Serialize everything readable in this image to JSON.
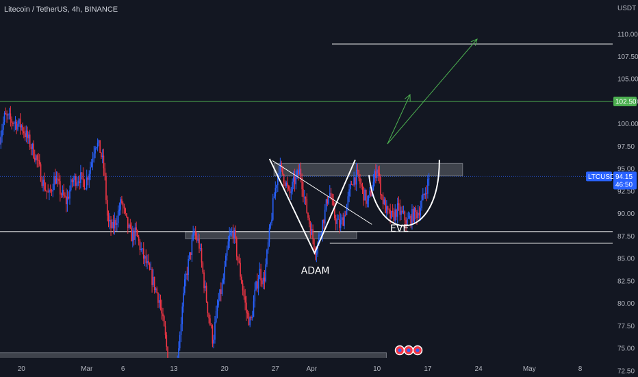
{
  "header": {
    "title": "Litecoin / TetherUS, 4h, BINANCE"
  },
  "colors": {
    "background": "#131722",
    "up": "#2962ff",
    "down": "#f23645",
    "text": "#b2b5be",
    "green": "#4caf50",
    "white": "#ffffff",
    "zone": "#5d6069"
  },
  "chart_data": {
    "type": "candlestick",
    "symbol": "LTCUSDT",
    "currency_label": "USDT",
    "ylim": [
      71.8,
      113.8
    ],
    "y_ticks": [
      "110.00",
      "107.50",
      "105.00",
      "102.50",
      "100.00",
      "97.50",
      "95.00",
      "92.50",
      "90.00",
      "87.50",
      "85.00",
      "82.50",
      "80.00",
      "77.50",
      "75.00",
      "72.50"
    ],
    "x_ticks": [
      {
        "label": "20",
        "day": 0
      },
      {
        "label": "Mar",
        "day": 9
      },
      {
        "label": "6",
        "day": 14
      },
      {
        "label": "13",
        "day": 21
      },
      {
        "label": "20",
        "day": 28
      },
      {
        "label": "27",
        "day": 35
      },
      {
        "label": "Apr",
        "day": 40
      },
      {
        "label": "10",
        "day": 49
      },
      {
        "label": "17",
        "day": 56
      },
      {
        "label": "24",
        "day": 63
      },
      {
        "label": "May",
        "day": 70
      },
      {
        "label": "8",
        "day": 77
      }
    ],
    "price_path": [
      [
        -3,
        98.5
      ],
      [
        -2.3,
        100.8
      ],
      [
        -1.5,
        100.4
      ],
      [
        0,
        99.8
      ],
      [
        1,
        98.1
      ],
      [
        2,
        96.3
      ],
      [
        3,
        93.4
      ],
      [
        3.8,
        91.9
      ],
      [
        4.6,
        94.1
      ],
      [
        5.4,
        92.4
      ],
      [
        6.2,
        91.3
      ],
      [
        7,
        93.6
      ],
      [
        8,
        94.1
      ],
      [
        8.8,
        93.3
      ],
      [
        9.6,
        95.6
      ],
      [
        10.2,
        98.1
      ],
      [
        10.8,
        97.2
      ],
      [
        11.4,
        94.9
      ],
      [
        11.9,
        89.0
      ],
      [
        12.5,
        88.3
      ],
      [
        13.1,
        89.4
      ],
      [
        13.8,
        91.4
      ],
      [
        14.4,
        89.2
      ],
      [
        15.1,
        87.5
      ],
      [
        15.8,
        87.8
      ],
      [
        16.6,
        85.6
      ],
      [
        17.4,
        84.0
      ],
      [
        18.2,
        82.3
      ],
      [
        19.0,
        80.4
      ],
      [
        19.8,
        76.3
      ],
      [
        20.4,
        72.7
      ],
      [
        20.9,
        72.1
      ],
      [
        21.2,
        71.6
      ],
      [
        21.9,
        77.3
      ],
      [
        22.6,
        82.7
      ],
      [
        23.2,
        85.3
      ],
      [
        23.8,
        87.9
      ],
      [
        24.5,
        86.5
      ],
      [
        25.1,
        82.7
      ],
      [
        25.8,
        78.7
      ],
      [
        26.4,
        75.8
      ],
      [
        27.0,
        79.6
      ],
      [
        27.8,
        82.4
      ],
      [
        28.6,
        87.2
      ],
      [
        29.2,
        88.1
      ],
      [
        29.8,
        85.0
      ],
      [
        30.4,
        82.2
      ],
      [
        31.0,
        79.0
      ],
      [
        31.6,
        77.7
      ],
      [
        32.2,
        81.2
      ],
      [
        32.8,
        83.6
      ],
      [
        33.4,
        82.3
      ],
      [
        34.1,
        87.2
      ],
      [
        34.8,
        91.8
      ],
      [
        35.5,
        95.3
      ],
      [
        36.2,
        94.1
      ],
      [
        36.9,
        92.0
      ],
      [
        37.6,
        93.6
      ],
      [
        38.4,
        94.8
      ],
      [
        39.2,
        90.8
      ],
      [
        40.0,
        87.8
      ],
      [
        40.6,
        85.8
      ],
      [
        41.2,
        88.1
      ],
      [
        41.8,
        90.0
      ],
      [
        42.4,
        92.7
      ],
      [
        43.1,
        89.8
      ],
      [
        43.8,
        88.6
      ],
      [
        44.4,
        89.5
      ],
      [
        45.0,
        91.5
      ],
      [
        45.6,
        93.8
      ],
      [
        46.3,
        94.2
      ],
      [
        47.0,
        92.6
      ],
      [
        47.7,
        91.1
      ],
      [
        48.4,
        93.1
      ],
      [
        49.0,
        95.3
      ],
      [
        49.7,
        91.8
      ],
      [
        50.4,
        90.0
      ],
      [
        51.1,
        89.5
      ],
      [
        51.8,
        90.5
      ],
      [
        52.5,
        89.8
      ],
      [
        53.2,
        89.1
      ],
      [
        53.9,
        89.8
      ],
      [
        54.6,
        90.1
      ],
      [
        55.2,
        91.2
      ],
      [
        55.8,
        92.9
      ],
      [
        56.3,
        94.2
      ]
    ],
    "levels": [
      {
        "price": 102.5,
        "color": "green",
        "from_day": -3.5,
        "label": "102.50"
      },
      {
        "price": 108.9,
        "color": "white",
        "from_day": 42.8
      },
      {
        "price": 88.0,
        "color": "white",
        "from_day": -3.5
      },
      {
        "price": 86.7,
        "color": "white",
        "from_day": 42.5
      }
    ],
    "zones": [
      {
        "day_from": 34.8,
        "day_to": 60.8,
        "price_top": 95.6,
        "price_bottom": 94.2
      },
      {
        "day_from": 22.6,
        "day_to": 46.2,
        "price_top": 88.0,
        "price_bottom": 87.2
      },
      {
        "day_from": -3.5,
        "day_to": 50.3,
        "price_top": 74.5,
        "price_bottom": 71.8
      }
    ],
    "annotations": [
      {
        "text": "ADAM",
        "day": 40.5,
        "price": 83.3
      },
      {
        "text": "EVE",
        "day": 52.1,
        "price": 88.0
      }
    ],
    "current_price": {
      "label": "LTCUSDT",
      "price_text": "94.15",
      "countdown": "46:50",
      "price": 94.15
    }
  }
}
